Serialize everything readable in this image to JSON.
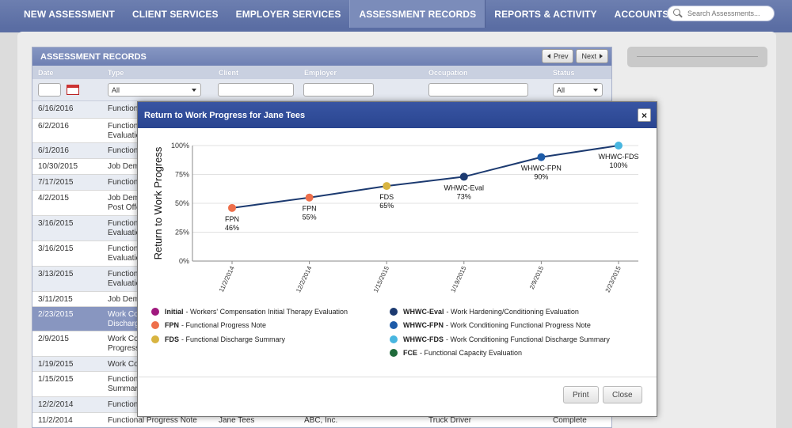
{
  "nav": {
    "items": [
      {
        "label": "NEW ASSESSMENT",
        "active": false
      },
      {
        "label": "CLIENT SERVICES",
        "active": false
      },
      {
        "label": "EMPLOYER SERVICES",
        "active": false
      },
      {
        "label": "ASSESSMENT RECORDS",
        "active": true
      },
      {
        "label": "REPORTS & ACTIVITY",
        "active": false
      },
      {
        "label": "ACCOUNTS",
        "active": false
      }
    ],
    "search_placeholder": "Search Assessments..."
  },
  "records": {
    "title": "ASSESSMENT RECORDS",
    "prev_label": "Prev",
    "next_label": "Next",
    "columns": [
      "Date",
      "Type",
      "Client",
      "Employer",
      "Occupation",
      "Status"
    ],
    "filters": {
      "type_value": "All",
      "status_value": "All"
    },
    "rows": [
      {
        "date": "6/16/2016",
        "type": "Functional",
        "client": "",
        "employer": "",
        "occupation": "",
        "status": "",
        "h": 22,
        "style": "alt"
      },
      {
        "date": "6/2/2016",
        "type": "Function\nEvaluation",
        "client": "",
        "employer": "",
        "occupation": "",
        "status": "",
        "h": 31,
        "style": ""
      },
      {
        "date": "6/1/2016",
        "type": "Function",
        "client": "",
        "employer": "",
        "occupation": "",
        "status": "",
        "h": 20,
        "style": "alt"
      },
      {
        "date": "10/30/2015",
        "type": "Job Dem",
        "client": "",
        "employer": "",
        "occupation": "",
        "status": "",
        "h": 20,
        "style": ""
      },
      {
        "date": "7/17/2015",
        "type": "Function",
        "client": "",
        "employer": "",
        "occupation": "",
        "status": "",
        "h": 20,
        "style": "alt"
      },
      {
        "date": "4/2/2015",
        "type": "Job Dem\nPost Offe",
        "client": "",
        "employer": "",
        "occupation": "",
        "status": "",
        "h": 32,
        "style": ""
      },
      {
        "date": "3/16/2015",
        "type": "Function\nEvaluatio",
        "client": "",
        "employer": "",
        "occupation": "",
        "status": "",
        "h": 32,
        "style": "alt"
      },
      {
        "date": "3/16/2015",
        "type": "Function\nEvaluatio",
        "client": "",
        "employer": "",
        "occupation": "",
        "status": "",
        "h": 32,
        "style": ""
      },
      {
        "date": "3/13/2015",
        "type": "Function\nEvaluatio",
        "client": "",
        "employer": "",
        "occupation": "",
        "status": "",
        "h": 32,
        "style": "alt"
      },
      {
        "date": "3/11/2015",
        "type": "Job Dem",
        "client": "",
        "employer": "",
        "occupation": "",
        "status": "",
        "h": 19,
        "style": ""
      },
      {
        "date": "2/23/2015",
        "type": "Work Co\nDischarg",
        "client": "",
        "employer": "",
        "occupation": "",
        "status": "",
        "h": 31,
        "style": "sel"
      },
      {
        "date": "2/9/2015",
        "type": "Work Co\nProgress",
        "client": "",
        "employer": "",
        "occupation": "",
        "status": "",
        "h": 32,
        "style": ""
      },
      {
        "date": "1/19/2015",
        "type": "Work Co",
        "client": "",
        "employer": "",
        "occupation": "",
        "status": "",
        "h": 19,
        "style": "alt"
      },
      {
        "date": "1/15/2015",
        "type": "Function\nSummar",
        "client": "",
        "employer": "",
        "occupation": "",
        "status": "",
        "h": 32,
        "style": ""
      },
      {
        "date": "12/2/2014",
        "type": "Function",
        "client": "",
        "employer": "",
        "occupation": "",
        "status": "",
        "h": 20,
        "style": "alt"
      },
      {
        "date": "11/2/2014",
        "type": "Functional Progress Note",
        "client": "Jane Tees",
        "employer": "ABC, Inc.",
        "occupation": "Truck Driver",
        "status": "Complete",
        "h": 22,
        "style": ""
      }
    ]
  },
  "modal": {
    "title": "Return to Work Progress for Jane Tees",
    "close_label": "×",
    "print_label": "Print",
    "close_button_label": "Close",
    "legend_left": [
      {
        "code": "Initial",
        "desc": "- Workers' Compensation Initial Therapy Evaluation",
        "color": "#a0197e"
      },
      {
        "code": "FPN",
        "desc": "- Functional Progress Note",
        "color": "#ee6f4b"
      },
      {
        "code": "FDS",
        "desc": "- Functional Discharge Summary",
        "color": "#d8b440"
      }
    ],
    "legend_right": [
      {
        "code": "WHWC-Eval",
        "desc": "- Work Hardening/Conditioning Evaluation",
        "color": "#1c3a70"
      },
      {
        "code": "WHWC-FPN",
        "desc": "- Work Conditioning Functional Progress Note",
        "color": "#1d5ba8"
      },
      {
        "code": "WHWC-FDS",
        "desc": "- Work Conditioning Functional Discharge Summary",
        "color": "#48b6e0"
      },
      {
        "code": "FCE",
        "desc": "- Functional Capacity Evaluation",
        "color": "#1f6b3b"
      }
    ]
  },
  "chart_data": {
    "type": "line",
    "title": "",
    "xlabel": "",
    "ylabel": "Return to Work Progress",
    "ylim": [
      0,
      100
    ],
    "yticks": [
      "0%",
      "25%",
      "50%",
      "75%",
      "100%"
    ],
    "categories": [
      "11/2/2014",
      "12/2/2014",
      "1/15/2015",
      "1/19/2015",
      "2/9/2015",
      "2/23/2015"
    ],
    "grid": true,
    "series": [
      {
        "values": [
          46,
          55,
          65,
          73,
          90,
          100
        ],
        "point_labels": [
          "FPN",
          "FPN",
          "FDS",
          "WHWC-Eval",
          "WHWC-FPN",
          "WHWC-FDS"
        ],
        "value_labels": [
          "46%",
          "55%",
          "65%",
          "73%",
          "90%",
          "100%"
        ],
        "point_colors": [
          "#ee6f4b",
          "#ee6f4b",
          "#d8b440",
          "#1c3a70",
          "#1d5ba8",
          "#48b6e0"
        ],
        "line_color": "#1c3a70"
      }
    ]
  }
}
